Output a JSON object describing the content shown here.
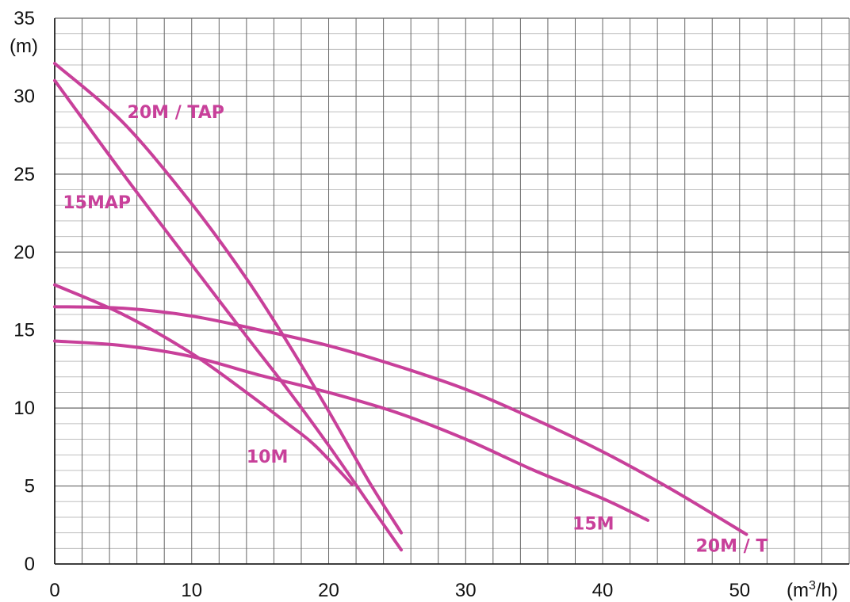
{
  "chart_data": {
    "type": "line",
    "title": "",
    "xlabel": "",
    "ylabel": "",
    "y_unit": "(m)",
    "x_unit": "(m3/h)",
    "x_unit_base": "(m",
    "x_unit_sup": "3",
    "x_unit_tail": "/h)",
    "xlim": [
      0,
      58
    ],
    "ylim": [
      0,
      35
    ],
    "x_ticks": [
      "0",
      "10",
      "20",
      "30",
      "40",
      "50"
    ],
    "y_ticks": [
      "0",
      "5",
      "10",
      "15",
      "20",
      "25",
      "30",
      "35"
    ],
    "grid": true,
    "line_color": "#c8409a",
    "grid_major_color": "#666666",
    "grid_minor_color": "#bfbfbf",
    "series": [
      {
        "name": "20M / TAP",
        "points": [
          [
            0,
            32.1
          ],
          [
            5,
            28.3
          ],
          [
            10,
            23.1
          ],
          [
            14,
            18.3
          ],
          [
            17,
            14.2
          ],
          [
            20,
            9.8
          ],
          [
            23,
            5.2
          ],
          [
            25.3,
            2.0
          ]
        ]
      },
      {
        "name": "15MAP",
        "points": [
          [
            0,
            31.0
          ],
          [
            5,
            25.0
          ],
          [
            10,
            19.2
          ],
          [
            14,
            14.6
          ],
          [
            17,
            11.2
          ],
          [
            20,
            7.6
          ],
          [
            23,
            3.8
          ],
          [
            25.3,
            0.9
          ]
        ]
      },
      {
        "name": "10M",
        "points": [
          [
            0,
            17.9
          ],
          [
            5,
            16.0
          ],
          [
            10,
            13.5
          ],
          [
            14,
            11.0
          ],
          [
            17,
            9.0
          ],
          [
            19,
            7.6
          ],
          [
            21.7,
            5.1
          ]
        ]
      },
      {
        "name": "15M",
        "points": [
          [
            0,
            14.3
          ],
          [
            5,
            14.0
          ],
          [
            10,
            13.3
          ],
          [
            15,
            12.1
          ],
          [
            20,
            11.0
          ],
          [
            25,
            9.7
          ],
          [
            30,
            8.0
          ],
          [
            35,
            6.0
          ],
          [
            40,
            4.2
          ],
          [
            43.3,
            2.8
          ]
        ]
      },
      {
        "name": "20M / T",
        "points": [
          [
            0,
            16.5
          ],
          [
            5,
            16.4
          ],
          [
            10,
            15.9
          ],
          [
            15,
            15.0
          ],
          [
            20,
            14.0
          ],
          [
            25,
            12.7
          ],
          [
            30,
            11.2
          ],
          [
            35,
            9.3
          ],
          [
            40,
            7.2
          ],
          [
            45,
            4.8
          ],
          [
            50.5,
            1.9
          ]
        ]
      }
    ],
    "labels": [
      {
        "text": "20M / TAP",
        "x": 5.3,
        "y": 28.6
      },
      {
        "text": "15MAP",
        "x": 0.6,
        "y": 22.8
      },
      {
        "text": "10M",
        "x": 14.0,
        "y": 6.5
      },
      {
        "text": "15M",
        "x": 37.8,
        "y": 2.2
      },
      {
        "text": "20M / T",
        "x": 46.8,
        "y": 0.8
      }
    ]
  }
}
